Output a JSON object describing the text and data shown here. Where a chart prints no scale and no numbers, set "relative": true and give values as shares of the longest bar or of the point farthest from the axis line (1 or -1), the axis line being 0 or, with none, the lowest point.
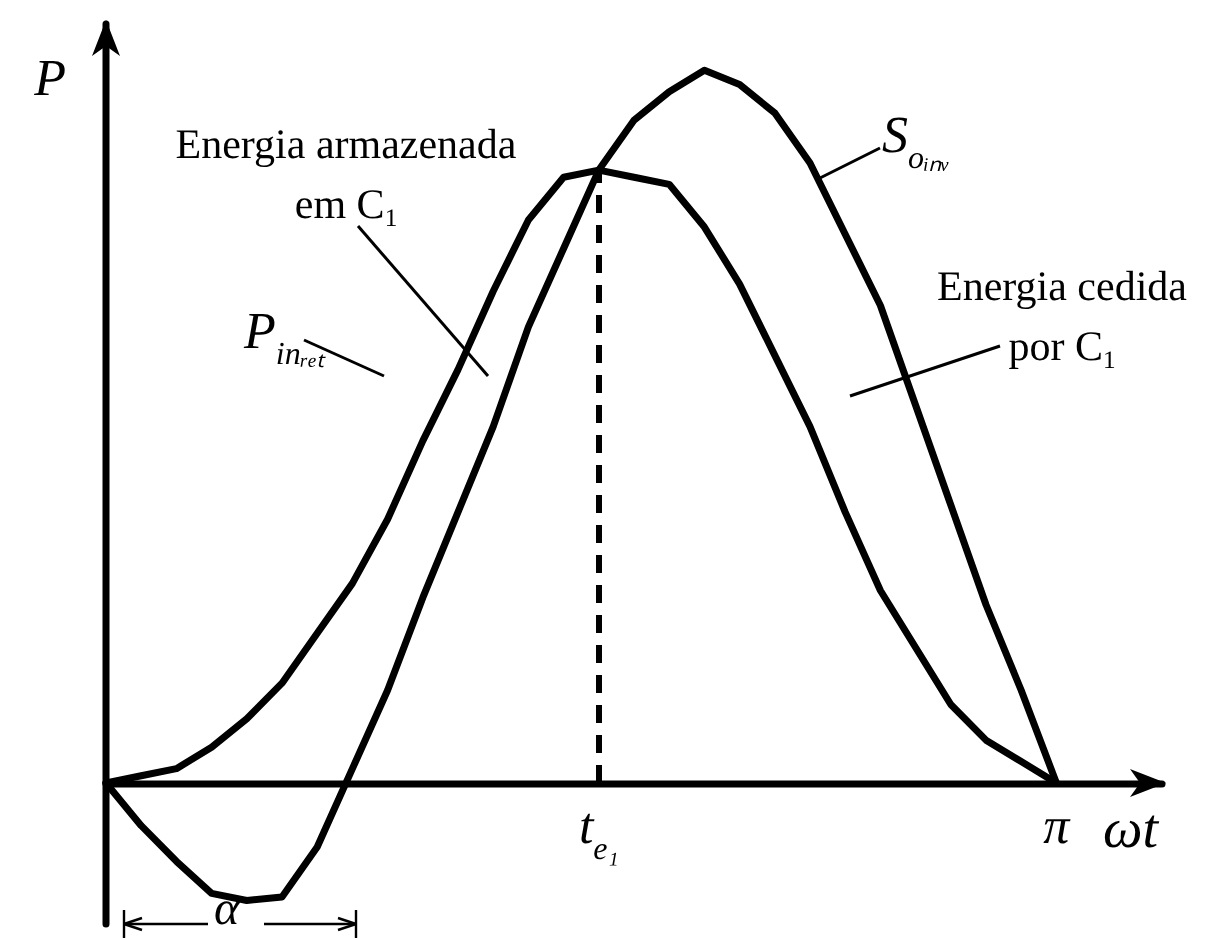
{
  "chart_data": {
    "type": "line",
    "relative": true,
    "xlabel": "ωt",
    "ylabel": "P",
    "categories": [
      null,
      null,
      null,
      null,
      null,
      null,
      null,
      null,
      null,
      null,
      null,
      null,
      null,
      null,
      "t$_{e₁}$",
      null,
      null,
      null,
      null,
      null,
      null,
      null,
      null,
      null,
      null,
      null,
      null,
      "π",
      null,
      null,
      null
    ],
    "ref_lines": [
      {
        "axis": "x",
        "value": "t$_{e₁}$",
        "line_style": "dashed",
        "color": "#000000"
      }
    ],
    "series": [
      {
        "name": "S$_{oᵢₙᵥ}$",
        "color": "#000000",
        "values": [
          0,
          -0.06,
          -0.11,
          -0.155,
          -0.165,
          -0.16,
          -0.09,
          0.02,
          0.13,
          0.26,
          0.38,
          0.5,
          0.64,
          0.75,
          0.86,
          0.93,
          0.97,
          1,
          0.98,
          0.94,
          0.87,
          0.77,
          0.67,
          0.53,
          0.39,
          0.25,
          0.13,
          0,
          null,
          null,
          null
        ]
      },
      {
        "name": "P$_{inᵣₑₜ}$",
        "color": "#000000",
        "values": [
          0,
          0.01,
          0.02,
          0.05,
          0.09,
          0.14,
          0.21,
          0.28,
          0.37,
          0.48,
          0.58,
          0.69,
          0.79,
          0.85,
          0.86,
          0.85,
          0.84,
          0.78,
          0.7,
          0.6,
          0.5,
          0.38,
          0.27,
          0.19,
          0.11,
          0.06,
          0.03,
          0,
          null,
          null,
          null
        ]
      }
    ],
    "annotations": [
      "Energia armazenada em C$_{1}$",
      "Energia cedida por C$_{1}$",
      "α"
    ],
    "grid": false,
    "marker": "none",
    "line_style": "solid"
  }
}
